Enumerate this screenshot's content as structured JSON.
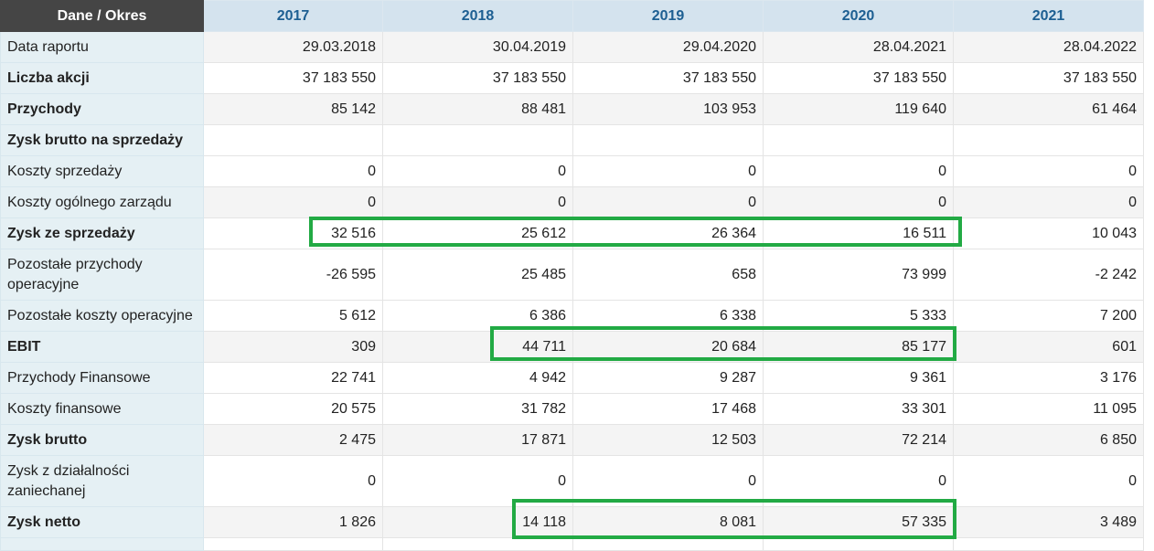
{
  "header": {
    "corner": "Dane / Okres",
    "years": [
      "2017",
      "2018",
      "2019",
      "2020",
      "2021"
    ]
  },
  "rows": [
    {
      "label": "Data raportu",
      "values": [
        "29.03.2018",
        "30.04.2019",
        "29.04.2020",
        "28.04.2021",
        "28.04.2022"
      ]
    },
    {
      "label": "Liczba akcji",
      "values": [
        "37 183 550",
        "37 183 550",
        "37 183 550",
        "37 183 550",
        "37 183 550"
      ]
    },
    {
      "label": "Przychody",
      "values": [
        "85 142",
        "88 481",
        "103 953",
        "119 640",
        "61 464"
      ]
    },
    {
      "label": "Zysk brutto na sprzedaży",
      "values": [
        "",
        "",
        "",
        "",
        ""
      ]
    },
    {
      "label": "Koszty sprzedaży",
      "values": [
        "0",
        "0",
        "0",
        "0",
        "0"
      ]
    },
    {
      "label": "Koszty ogólnego zarządu",
      "values": [
        "0",
        "0",
        "0",
        "0",
        "0"
      ]
    },
    {
      "label": "Zysk ze sprzedaży",
      "values": [
        "32 516",
        "25 612",
        "26 364",
        "16 511",
        "10 043"
      ]
    },
    {
      "label": "Pozostałe przychody operacyjne",
      "values": [
        "-26 595",
        "25 485",
        "658",
        "73 999",
        "-2 242"
      ]
    },
    {
      "label": "Pozostałe koszty operacyjne",
      "values": [
        "5 612",
        "6 386",
        "6 338",
        "5 333",
        "7 200"
      ]
    },
    {
      "label": "EBIT",
      "values": [
        "309",
        "44 711",
        "20 684",
        "85 177",
        "601"
      ]
    },
    {
      "label": "Przychody Finansowe",
      "values": [
        "22 741",
        "4 942",
        "9 287",
        "9 361",
        "3 176"
      ]
    },
    {
      "label": "Koszty finansowe",
      "values": [
        "20 575",
        "31 782",
        "17 468",
        "33 301",
        "11 095"
      ]
    },
    {
      "label": "Zysk brutto",
      "values": [
        "2 475",
        "17 871",
        "12 503",
        "72 214",
        "6 850"
      ]
    },
    {
      "label": "Zysk z działalności zaniechanej",
      "values": [
        "0",
        "0",
        "0",
        "0",
        "0"
      ]
    },
    {
      "label": "Zysk netto",
      "values": [
        "1 826",
        "14 118",
        "8 081",
        "57 335",
        "3 489"
      ]
    }
  ],
  "highlight_color": "#22aa44"
}
